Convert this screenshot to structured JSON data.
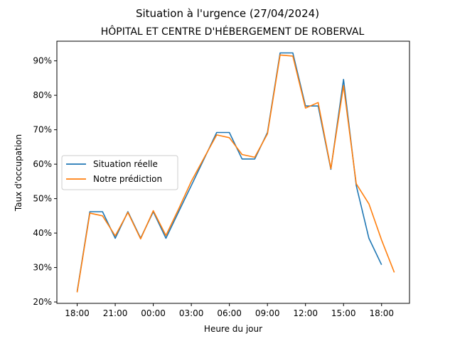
{
  "chart_data": {
    "type": "line",
    "title": "Situation à l'urgence (27/04/2024)",
    "subtitle": "HÔPITAL ET CENTRE D'HÉBERGEMENT DE ROBERVAL",
    "xlabel": "Heure du jour",
    "ylabel": "Taux d'occupation",
    "x_ticks": [
      "18:00",
      "21:00",
      "00:00",
      "03:00",
      "06:00",
      "09:00",
      "12:00",
      "15:00",
      "18:00"
    ],
    "x_tick_hours": [
      0,
      3,
      6,
      9,
      12,
      15,
      18,
      21,
      24
    ],
    "xlim": [
      -1.6,
      26.2
    ],
    "y_ticks": [
      "20%",
      "30%",
      "40%",
      "50%",
      "60%",
      "70%",
      "80%",
      "90%"
    ],
    "y_tick_values": [
      20,
      30,
      40,
      50,
      60,
      70,
      80,
      90
    ],
    "ylim": [
      19.6,
      95.7
    ],
    "legend_position": "center-left",
    "grid": false,
    "series": [
      {
        "name": "Situation réelle",
        "color": "#1f77b4",
        "x": [
          0,
          1,
          2,
          3,
          4,
          5,
          6,
          7,
          8,
          9,
          10,
          11,
          12,
          13,
          14,
          15,
          16,
          17,
          18,
          19,
          20,
          21,
          22,
          23,
          24
        ],
        "values": [
          23.0,
          46.2,
          46.2,
          38.5,
          46.2,
          38.5,
          46.2,
          38.5,
          46.2,
          53.8,
          61.5,
          69.2,
          69.2,
          61.5,
          61.5,
          69.2,
          92.3,
          92.3,
          76.9,
          76.9,
          58.5,
          84.6,
          53.8,
          38.5,
          30.8
        ]
      },
      {
        "name": "Notre prédiction",
        "color": "#ff7f0e",
        "x": [
          0,
          1,
          2,
          3,
          4,
          5,
          6,
          7,
          8,
          9,
          10,
          11,
          12,
          13,
          14,
          15,
          16,
          17,
          18,
          19,
          20,
          21,
          22,
          23,
          24,
          25
        ],
        "values": [
          22.8,
          45.8,
          45.0,
          39.2,
          46.0,
          38.3,
          46.5,
          39.3,
          47.0,
          55.0,
          61.8,
          68.5,
          67.7,
          62.8,
          62.0,
          68.8,
          91.7,
          91.4,
          76.3,
          77.9,
          58.7,
          82.8,
          54.3,
          48.5,
          38.0,
          28.6
        ]
      }
    ]
  }
}
